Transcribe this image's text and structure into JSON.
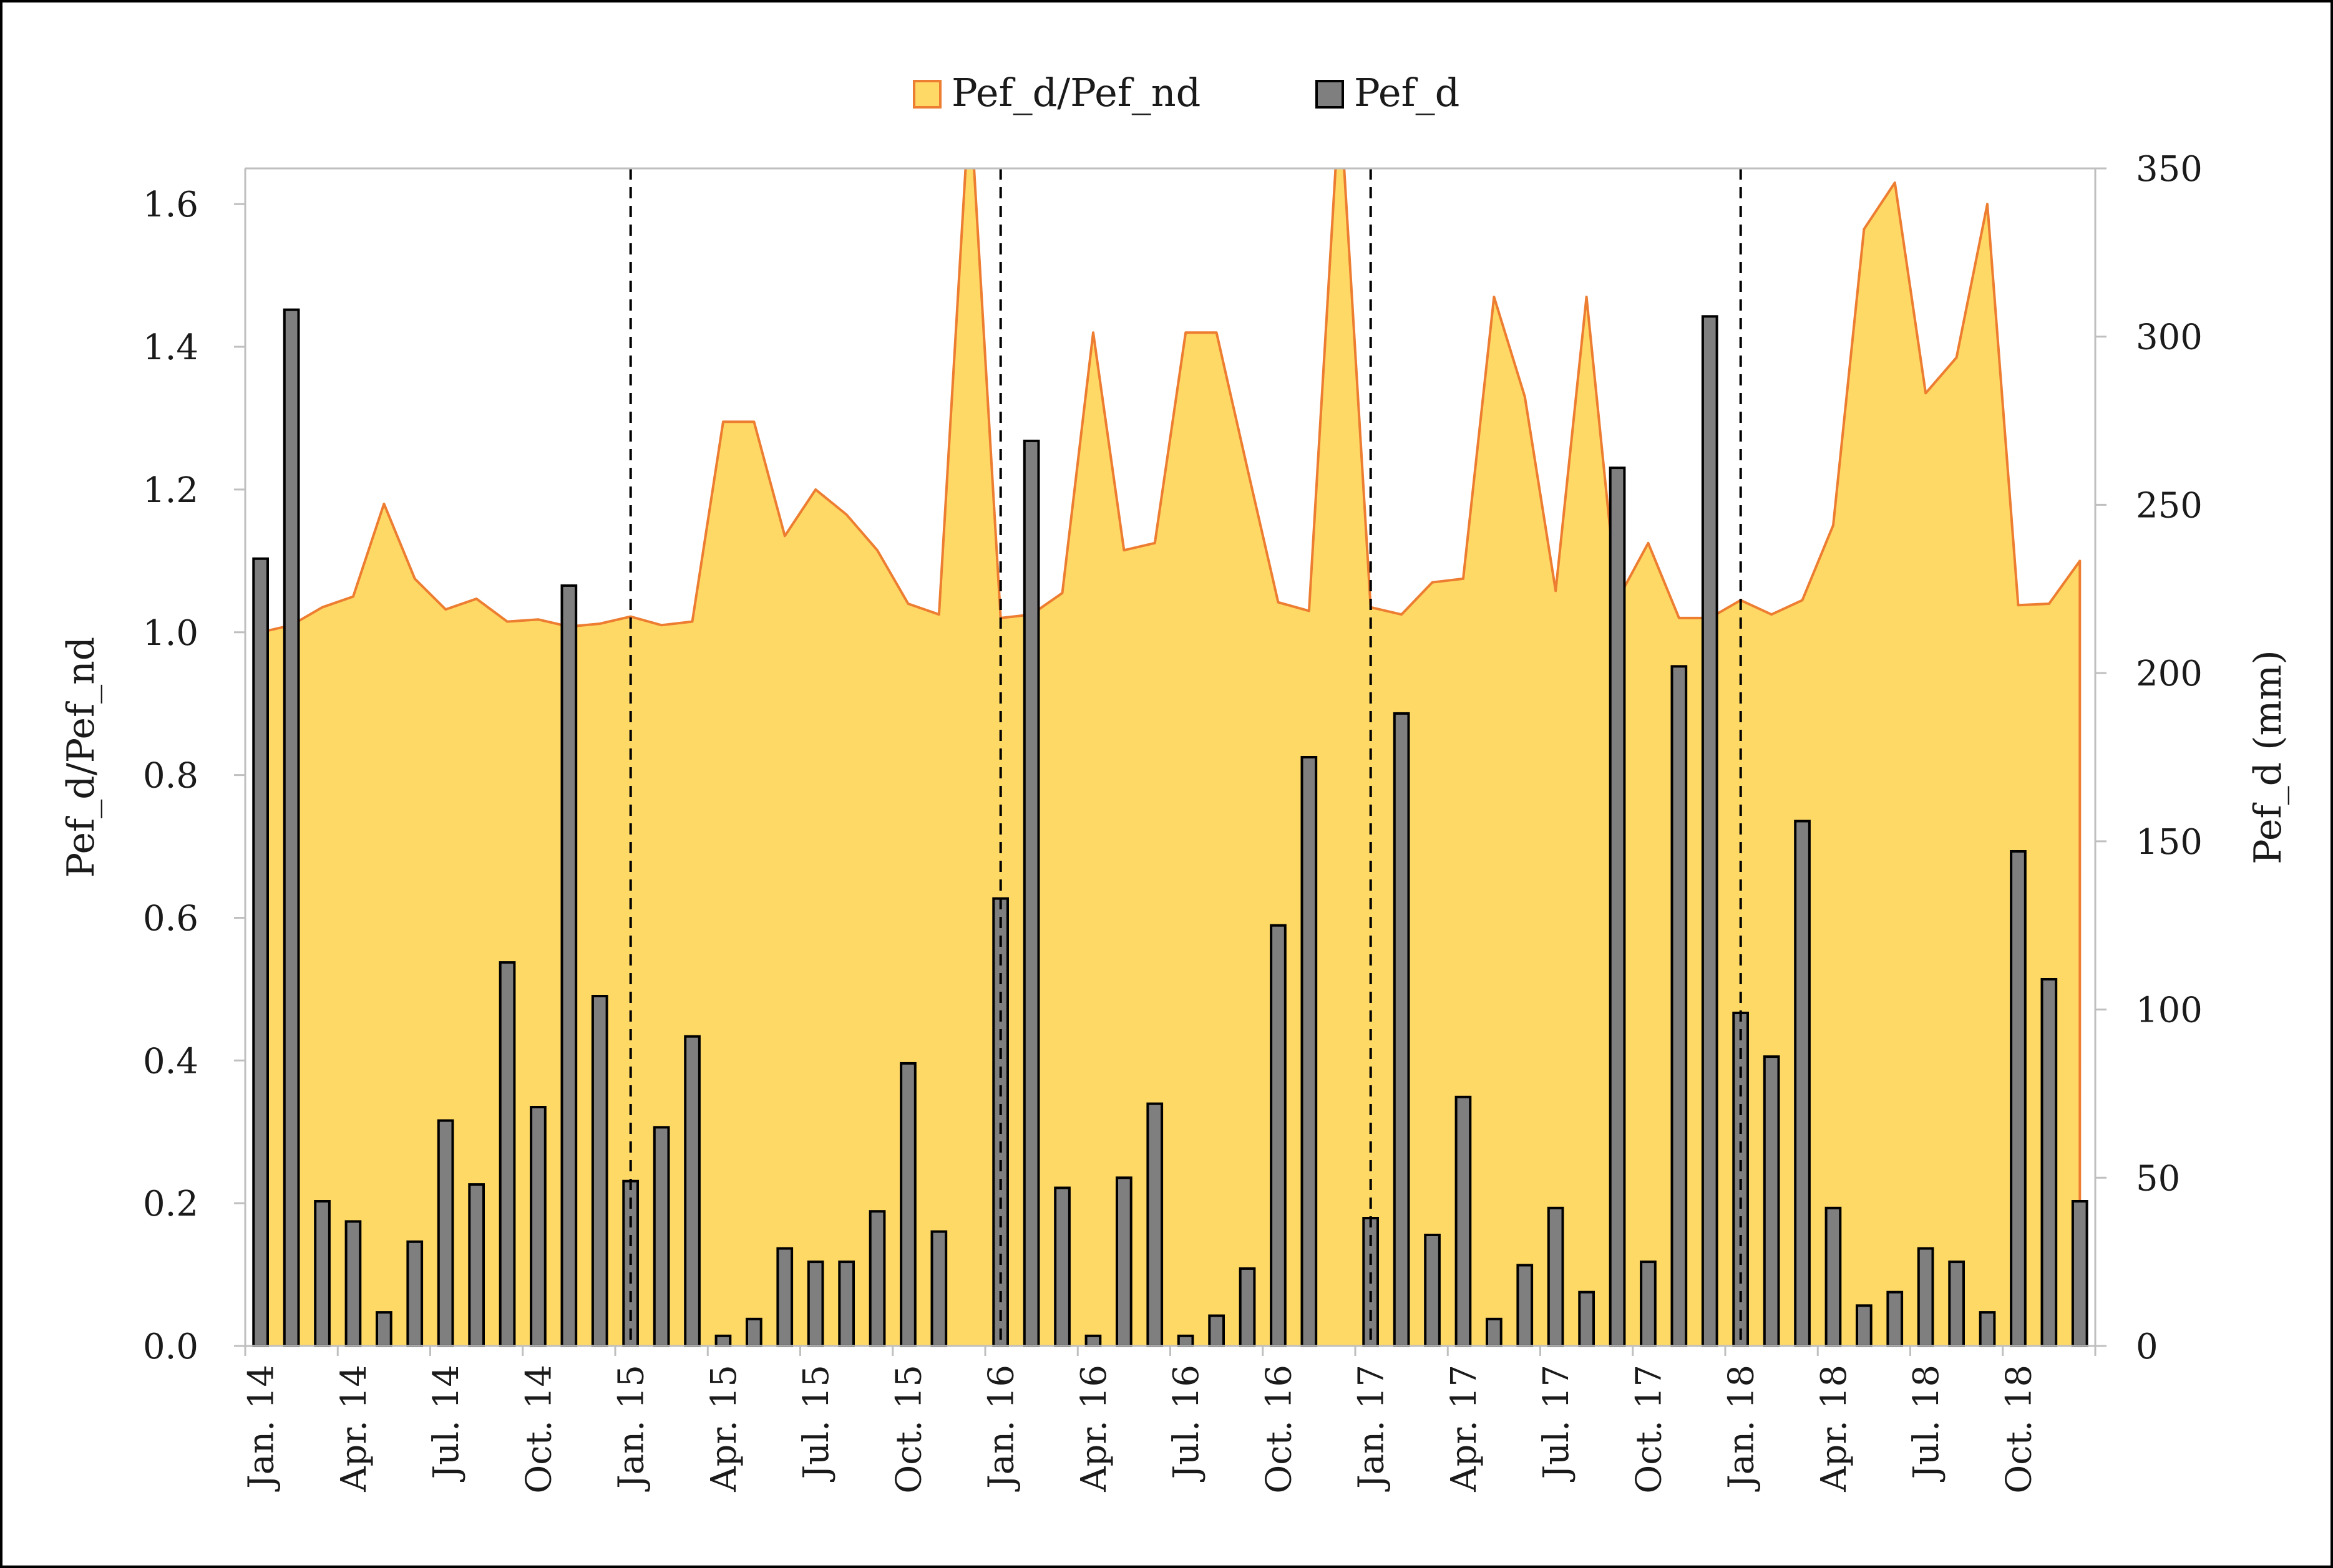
{
  "chart_data": {
    "type": "bar",
    "title": "",
    "legend": {
      "placement": "top-center",
      "entries": [
        {
          "label": "Pef_d/Pef_nd",
          "kind": "area"
        },
        {
          "label": "Pef_d",
          "kind": "bar"
        }
      ]
    },
    "ylabel_left": "Pef_d/Pef_nd",
    "ylabel_right": "Pef_d  (mm)",
    "ylim_left": [
      0,
      1.65
    ],
    "ylim_right": [
      0,
      350
    ],
    "yticks_left": [
      "0.0",
      "0.2",
      "0.4",
      "0.6",
      "0.8",
      "1.0",
      "1.2",
      "1.4",
      "1.6"
    ],
    "yticks_right": [
      "0",
      "50",
      "100",
      "150",
      "200",
      "250",
      "300",
      "350"
    ],
    "grid": false,
    "colors": {
      "area_fill": "#FFD966",
      "area_line": "#ED7D31",
      "bar_fill": "#7F7F7F",
      "bar_edge": "#000000",
      "frame": "#000000"
    },
    "x_tick_labels": [
      {
        "index": 0,
        "label": "Jan. 14"
      },
      {
        "index": 3,
        "label": "Apr. 14"
      },
      {
        "index": 6,
        "label": "Jul. 14"
      },
      {
        "index": 9,
        "label": "Oct. 14"
      },
      {
        "index": 12,
        "label": "Jan. 15"
      },
      {
        "index": 15,
        "label": "Apr. 15"
      },
      {
        "index": 18,
        "label": "Jul. 15"
      },
      {
        "index": 21,
        "label": "Oct. 15"
      },
      {
        "index": 24,
        "label": "Jan. 16"
      },
      {
        "index": 27,
        "label": "Apr. 16"
      },
      {
        "index": 30,
        "label": "Jul. 16"
      },
      {
        "index": 33,
        "label": "Oct. 16"
      },
      {
        "index": 36,
        "label": "Jan. 17"
      },
      {
        "index": 39,
        "label": "Apr. 17"
      },
      {
        "index": 42,
        "label": "Jul. 17"
      },
      {
        "index": 45,
        "label": "Oct. 17"
      },
      {
        "index": 48,
        "label": "Jan. 18"
      },
      {
        "index": 51,
        "label": "Apr. 18"
      },
      {
        "index": 54,
        "label": "Jul. 18"
      },
      {
        "index": 57,
        "label": "Oct. 18"
      }
    ],
    "year_separators": [
      12,
      24,
      36,
      48
    ],
    "series": [
      {
        "name": "Pef_d/Pef_nd",
        "type": "area",
        "axis": "left",
        "values": [
          1.0,
          1.01,
          1.035,
          1.05,
          1.18,
          1.075,
          1.032,
          1.047,
          1.015,
          1.018,
          1.008,
          1.012,
          1.022,
          1.01,
          1.015,
          1.295,
          1.295,
          1.135,
          1.2,
          1.165,
          1.115,
          1.04,
          1.025,
          1.75,
          1.02,
          1.025,
          1.055,
          1.42,
          1.115,
          1.125,
          1.42,
          1.42,
          1.23,
          1.042,
          1.03,
          1.75,
          1.035,
          1.025,
          1.07,
          1.075,
          1.47,
          1.33,
          1.058,
          1.47,
          1.045,
          1.125,
          1.02,
          1.02,
          1.045,
          1.025,
          1.045,
          1.15,
          1.565,
          1.63,
          1.335,
          1.385,
          1.6,
          1.038,
          1.04,
          1.1
        ]
      },
      {
        "name": "Pef_d",
        "type": "bar",
        "axis": "right",
        "values": [
          234,
          308,
          43,
          37,
          10,
          31,
          67,
          48,
          114,
          71,
          226,
          104,
          49,
          65,
          92,
          3,
          8,
          29,
          25,
          25,
          40,
          84,
          34,
          0,
          133,
          269,
          47,
          3,
          50,
          72,
          3,
          9,
          23,
          125,
          175,
          0,
          38,
          188,
          33,
          74,
          8,
          24,
          41,
          16,
          261,
          25,
          202,
          306,
          99,
          86,
          156,
          41,
          12,
          16,
          29,
          25,
          10,
          147,
          109,
          43
        ]
      }
    ]
  }
}
